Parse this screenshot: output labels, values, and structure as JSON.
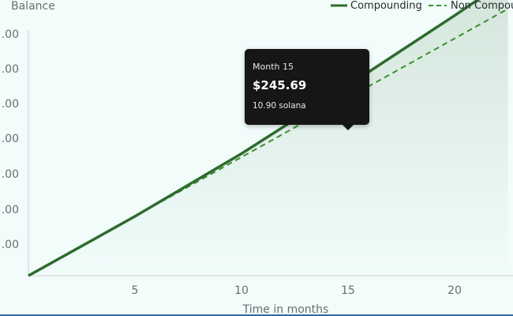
{
  "chart_data": {
    "type": "line",
    "ylabel": "Balance",
    "xlabel": "Time in months",
    "x_ticks": [
      5,
      10,
      15,
      20
    ],
    "y_tick_labels": [
      ".00",
      ".00",
      ".00",
      ".00",
      ".00",
      ".00",
      ".00"
    ],
    "xlim": [
      0,
      22.5
    ],
    "series": [
      {
        "name": "Compounding",
        "style": "solid",
        "color": "#2e6b2e",
        "x": [
          0,
          5,
          10,
          15,
          20,
          22.5
        ],
        "y": [
          0,
          76.6,
          157.7,
          245.69,
          336.0,
          383.0
        ]
      },
      {
        "name": "Non Compounding",
        "legend_text": "Non Compou",
        "style": "dashed",
        "color": "#3c8f2f",
        "x": [
          0,
          5,
          10,
          15,
          20,
          22.5
        ],
        "y": [
          0,
          76.6,
          153.2,
          229.8,
          306.4,
          344.7
        ]
      }
    ],
    "tooltip": {
      "month": "Month 15",
      "value": "$245.69",
      "sub": "10.90 solana"
    }
  }
}
